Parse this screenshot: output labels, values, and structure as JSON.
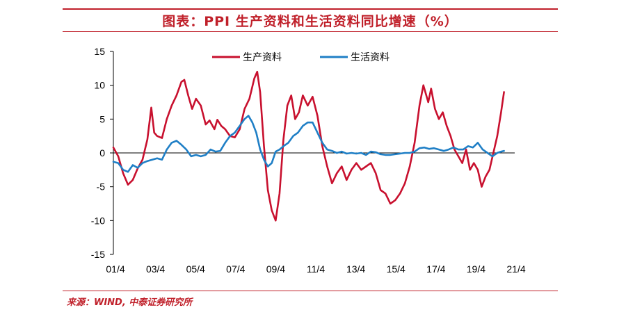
{
  "title": "图表：PPI 生产资料和生活资料同比增速（%）",
  "source": "来源：WIND, 中泰证券研究所",
  "colors": {
    "accent": "#c0202a",
    "series1": "#c8102e",
    "series2": "#1f7fc6"
  },
  "chart_data": {
    "type": "line",
    "title": "图表：PPI 生产资料和生活资料同比增速（%）",
    "xlabel": "",
    "ylabel": "",
    "ylim": [
      -15,
      15
    ],
    "yticks": [
      "15",
      "10",
      "5",
      "0",
      "-5",
      "-10",
      "-15"
    ],
    "xlim": [
      2001.25,
      2021.9
    ],
    "xticks": [
      "01/4",
      "03/4",
      "05/4",
      "07/4",
      "09/4",
      "11/4",
      "13/4",
      "15/4",
      "17/4",
      "19/4",
      "21/4"
    ],
    "grid": false,
    "legend": "top-center",
    "series": [
      {
        "name": "生产资料",
        "color": "#c8102e",
        "points": [
          [
            2001.25,
            0.8
          ],
          [
            2001.5,
            -0.5
          ],
          [
            2001.75,
            -3.0
          ],
          [
            2002.0,
            -4.7
          ],
          [
            2002.25,
            -4.0
          ],
          [
            2002.5,
            -2.3
          ],
          [
            2002.75,
            -1.0
          ],
          [
            2003.0,
            2.0
          ],
          [
            2003.2,
            6.7
          ],
          [
            2003.35,
            3.0
          ],
          [
            2003.5,
            2.5
          ],
          [
            2003.75,
            2.2
          ],
          [
            2004.0,
            5.0
          ],
          [
            2004.25,
            7.0
          ],
          [
            2004.5,
            8.5
          ],
          [
            2004.75,
            10.5
          ],
          [
            2004.9,
            10.8
          ],
          [
            2005.1,
            8.5
          ],
          [
            2005.3,
            6.5
          ],
          [
            2005.5,
            8.0
          ],
          [
            2005.75,
            7.0
          ],
          [
            2006.0,
            4.2
          ],
          [
            2006.2,
            4.8
          ],
          [
            2006.45,
            3.5
          ],
          [
            2006.6,
            4.9
          ],
          [
            2006.8,
            4.0
          ],
          [
            2007.0,
            3.5
          ],
          [
            2007.25,
            2.5
          ],
          [
            2007.5,
            2.3
          ],
          [
            2007.75,
            3.5
          ],
          [
            2008.0,
            6.5
          ],
          [
            2008.25,
            8.0
          ],
          [
            2008.5,
            11.0
          ],
          [
            2008.65,
            12.0
          ],
          [
            2008.8,
            9.0
          ],
          [
            2009.0,
            1.0
          ],
          [
            2009.2,
            -5.5
          ],
          [
            2009.4,
            -8.5
          ],
          [
            2009.6,
            -10.0
          ],
          [
            2009.8,
            -6.0
          ],
          [
            2010.0,
            2.0
          ],
          [
            2010.2,
            7.0
          ],
          [
            2010.4,
            8.5
          ],
          [
            2010.6,
            5.0
          ],
          [
            2010.8,
            6.0
          ],
          [
            2011.0,
            8.5
          ],
          [
            2011.25,
            7.0
          ],
          [
            2011.5,
            8.3
          ],
          [
            2011.75,
            5.5
          ],
          [
            2012.0,
            1.0
          ],
          [
            2012.25,
            -2.0
          ],
          [
            2012.5,
            -4.5
          ],
          [
            2012.75,
            -3.0
          ],
          [
            2013.0,
            -2.0
          ],
          [
            2013.25,
            -4.0
          ],
          [
            2013.5,
            -2.5
          ],
          [
            2013.75,
            -1.5
          ],
          [
            2014.0,
            -2.5
          ],
          [
            2014.25,
            -2.0
          ],
          [
            2014.5,
            -1.5
          ],
          [
            2014.75,
            -3.0
          ],
          [
            2015.0,
            -5.5
          ],
          [
            2015.25,
            -6.0
          ],
          [
            2015.5,
            -7.5
          ],
          [
            2015.75,
            -7.0
          ],
          [
            2016.0,
            -6.0
          ],
          [
            2016.25,
            -4.5
          ],
          [
            2016.5,
            -2.0
          ],
          [
            2016.75,
            1.5
          ],
          [
            2017.0,
            7.0
          ],
          [
            2017.2,
            10.0
          ],
          [
            2017.45,
            7.5
          ],
          [
            2017.6,
            9.5
          ],
          [
            2017.8,
            6.5
          ],
          [
            2018.0,
            5.0
          ],
          [
            2018.2,
            6.0
          ],
          [
            2018.4,
            4.0
          ],
          [
            2018.6,
            2.5
          ],
          [
            2018.8,
            0.5
          ],
          [
            2019.0,
            -0.5
          ],
          [
            2019.2,
            -1.5
          ],
          [
            2019.4,
            0.5
          ],
          [
            2019.6,
            -2.5
          ],
          [
            2019.8,
            -1.5
          ],
          [
            2020.0,
            -2.5
          ],
          [
            2020.2,
            -5.0
          ],
          [
            2020.4,
            -3.5
          ],
          [
            2020.6,
            -2.5
          ],
          [
            2020.8,
            0.0
          ],
          [
            2021.0,
            2.5
          ],
          [
            2021.2,
            6.0
          ],
          [
            2021.35,
            9.0
          ]
        ]
      },
      {
        "name": "生活资料",
        "color": "#1f7fc6",
        "points": [
          [
            2001.25,
            -1.3
          ],
          [
            2001.5,
            -1.5
          ],
          [
            2001.75,
            -2.5
          ],
          [
            2002.0,
            -2.8
          ],
          [
            2002.25,
            -1.8
          ],
          [
            2002.5,
            -2.2
          ],
          [
            2002.75,
            -1.5
          ],
          [
            2003.0,
            -1.2
          ],
          [
            2003.25,
            -1.0
          ],
          [
            2003.5,
            -0.8
          ],
          [
            2003.75,
            -1.0
          ],
          [
            2004.0,
            0.5
          ],
          [
            2004.25,
            1.5
          ],
          [
            2004.5,
            1.8
          ],
          [
            2004.75,
            1.2
          ],
          [
            2005.0,
            0.5
          ],
          [
            2005.25,
            -0.5
          ],
          [
            2005.5,
            -0.3
          ],
          [
            2005.75,
            -0.5
          ],
          [
            2006.0,
            -0.3
          ],
          [
            2006.25,
            0.5
          ],
          [
            2006.5,
            0.2
          ],
          [
            2006.75,
            0.3
          ],
          [
            2007.0,
            1.5
          ],
          [
            2007.25,
            2.5
          ],
          [
            2007.5,
            3.0
          ],
          [
            2007.75,
            4.0
          ],
          [
            2008.0,
            5.0
          ],
          [
            2008.2,
            5.5
          ],
          [
            2008.4,
            4.5
          ],
          [
            2008.6,
            3.0
          ],
          [
            2008.8,
            0.5
          ],
          [
            2009.0,
            -1.0
          ],
          [
            2009.2,
            -2.0
          ],
          [
            2009.4,
            -1.5
          ],
          [
            2009.6,
            0.2
          ],
          [
            2009.8,
            0.5
          ],
          [
            2010.0,
            1.0
          ],
          [
            2010.25,
            1.5
          ],
          [
            2010.5,
            2.5
          ],
          [
            2010.75,
            3.0
          ],
          [
            2011.0,
            4.0
          ],
          [
            2011.25,
            4.5
          ],
          [
            2011.5,
            4.5
          ],
          [
            2011.75,
            3.0
          ],
          [
            2012.0,
            1.5
          ],
          [
            2012.25,
            0.5
          ],
          [
            2012.5,
            0.3
          ],
          [
            2012.75,
            0.0
          ],
          [
            2013.0,
            0.2
          ],
          [
            2013.25,
            -0.1
          ],
          [
            2013.5,
            0.0
          ],
          [
            2013.75,
            -0.1
          ],
          [
            2014.0,
            0.0
          ],
          [
            2014.25,
            -0.3
          ],
          [
            2014.5,
            0.2
          ],
          [
            2014.75,
            0.1
          ],
          [
            2015.0,
            -0.2
          ],
          [
            2015.25,
            -0.3
          ],
          [
            2015.5,
            -0.3
          ],
          [
            2015.75,
            -0.2
          ],
          [
            2016.0,
            -0.1
          ],
          [
            2016.25,
            0.0
          ],
          [
            2016.5,
            0.0
          ],
          [
            2016.75,
            0.2
          ],
          [
            2017.0,
            0.7
          ],
          [
            2017.25,
            0.8
          ],
          [
            2017.5,
            0.6
          ],
          [
            2017.75,
            0.7
          ],
          [
            2018.0,
            0.5
          ],
          [
            2018.25,
            0.3
          ],
          [
            2018.5,
            0.5
          ],
          [
            2018.75,
            0.8
          ],
          [
            2019.0,
            0.5
          ],
          [
            2019.25,
            0.5
          ],
          [
            2019.5,
            1.0
          ],
          [
            2019.75,
            0.8
          ],
          [
            2020.0,
            1.5
          ],
          [
            2020.25,
            0.5
          ],
          [
            2020.5,
            0.0
          ],
          [
            2020.75,
            -0.5
          ],
          [
            2021.0,
            0.0
          ],
          [
            2021.2,
            0.2
          ],
          [
            2021.35,
            0.3
          ]
        ]
      }
    ]
  }
}
